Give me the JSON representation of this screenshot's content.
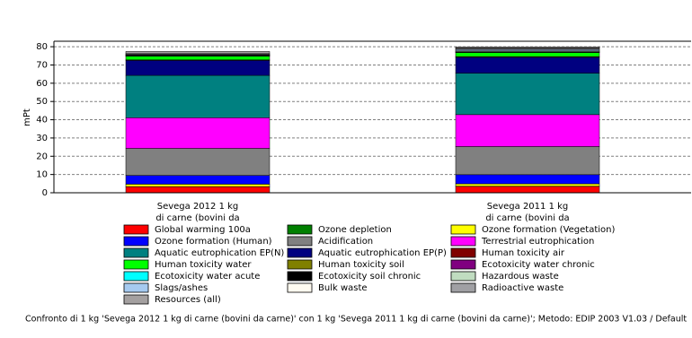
{
  "chart_data": {
    "type": "stacked_bar",
    "y_label": "mPt",
    "footer": "Confronto di 1 kg 'Sevega 2012 1 kg di carne (bovini da carne)' con 1 kg 'Sevega 2011 1 kg di carne (bovini da carne)';  Metodo: EDIP 2003 V1.03 / Default",
    "categories": [
      [
        "Sevega 2012 1 kg",
        "di carne (bovini da"
      ],
      [
        "Sevega 2011 1 kg",
        "di carne (bovini da"
      ]
    ],
    "ylim": [
      0,
      83
    ],
    "yticks": [
      0,
      10,
      20,
      30,
      40,
      50,
      60,
      70,
      80
    ],
    "grid": true,
    "series": [
      {
        "name": "Global warming 100a",
        "color": "#ff0000",
        "values": [
          3.3,
          3.5
        ]
      },
      {
        "name": "Ozone depletion",
        "color": "#008000",
        "values": [
          0.1,
          0.1
        ]
      },
      {
        "name": "Ozone formation (Vegetation)",
        "color": "#ffff00",
        "values": [
          1.3,
          1.3
        ]
      },
      {
        "name": "Ozone formation (Human)",
        "color": "#0000ff",
        "values": [
          4.8,
          5.0
        ]
      },
      {
        "name": "Acidification",
        "color": "#808080",
        "values": [
          14.8,
          15.4
        ]
      },
      {
        "name": "Terrestrial eutrophication",
        "color": "#ff00ff",
        "values": [
          16.8,
          17.5
        ]
      },
      {
        "name": "Aquatic eutrophication EP(N)",
        "color": "#008080",
        "values": [
          23.2,
          22.7
        ]
      },
      {
        "name": "Aquatic eutrophication EP(P)",
        "color": "#000080",
        "values": [
          8.2,
          8.7
        ]
      },
      {
        "name": "Human toxicity air",
        "color": "#800000",
        "values": [
          0.3,
          0.4
        ]
      },
      {
        "name": "Human toxicity water",
        "color": "#00ff00",
        "values": [
          2.0,
          2.2
        ]
      },
      {
        "name": "Human toxicity soil",
        "color": "#808000",
        "values": [
          0.1,
          0.1
        ]
      },
      {
        "name": "Ecotoxicity water chronic",
        "color": "#800080",
        "values": [
          0.2,
          0.2
        ]
      },
      {
        "name": "Ecotoxicity water acute",
        "color": "#00ffff",
        "values": [
          0.1,
          0.1
        ]
      },
      {
        "name": "Ecotoxicity soil chronic",
        "color": "#000000",
        "values": [
          0.1,
          0.1
        ]
      },
      {
        "name": "Hazardous waste",
        "color": "#c0dcc0",
        "values": [
          0.3,
          0.4
        ]
      },
      {
        "name": "Slags/ashes",
        "color": "#a6caf0",
        "values": [
          0.1,
          0.8
        ]
      },
      {
        "name": "Bulk waste",
        "color": "#fffbf0",
        "values": [
          0.1,
          0.3
        ]
      },
      {
        "name": "Radioactive waste",
        "color": "#a0a0a4",
        "values": [
          0.4,
          0.5
        ]
      },
      {
        "name": "Resources (all)",
        "color": "#a4a0a0",
        "values": [
          1.2,
          0.6
        ]
      }
    ]
  }
}
